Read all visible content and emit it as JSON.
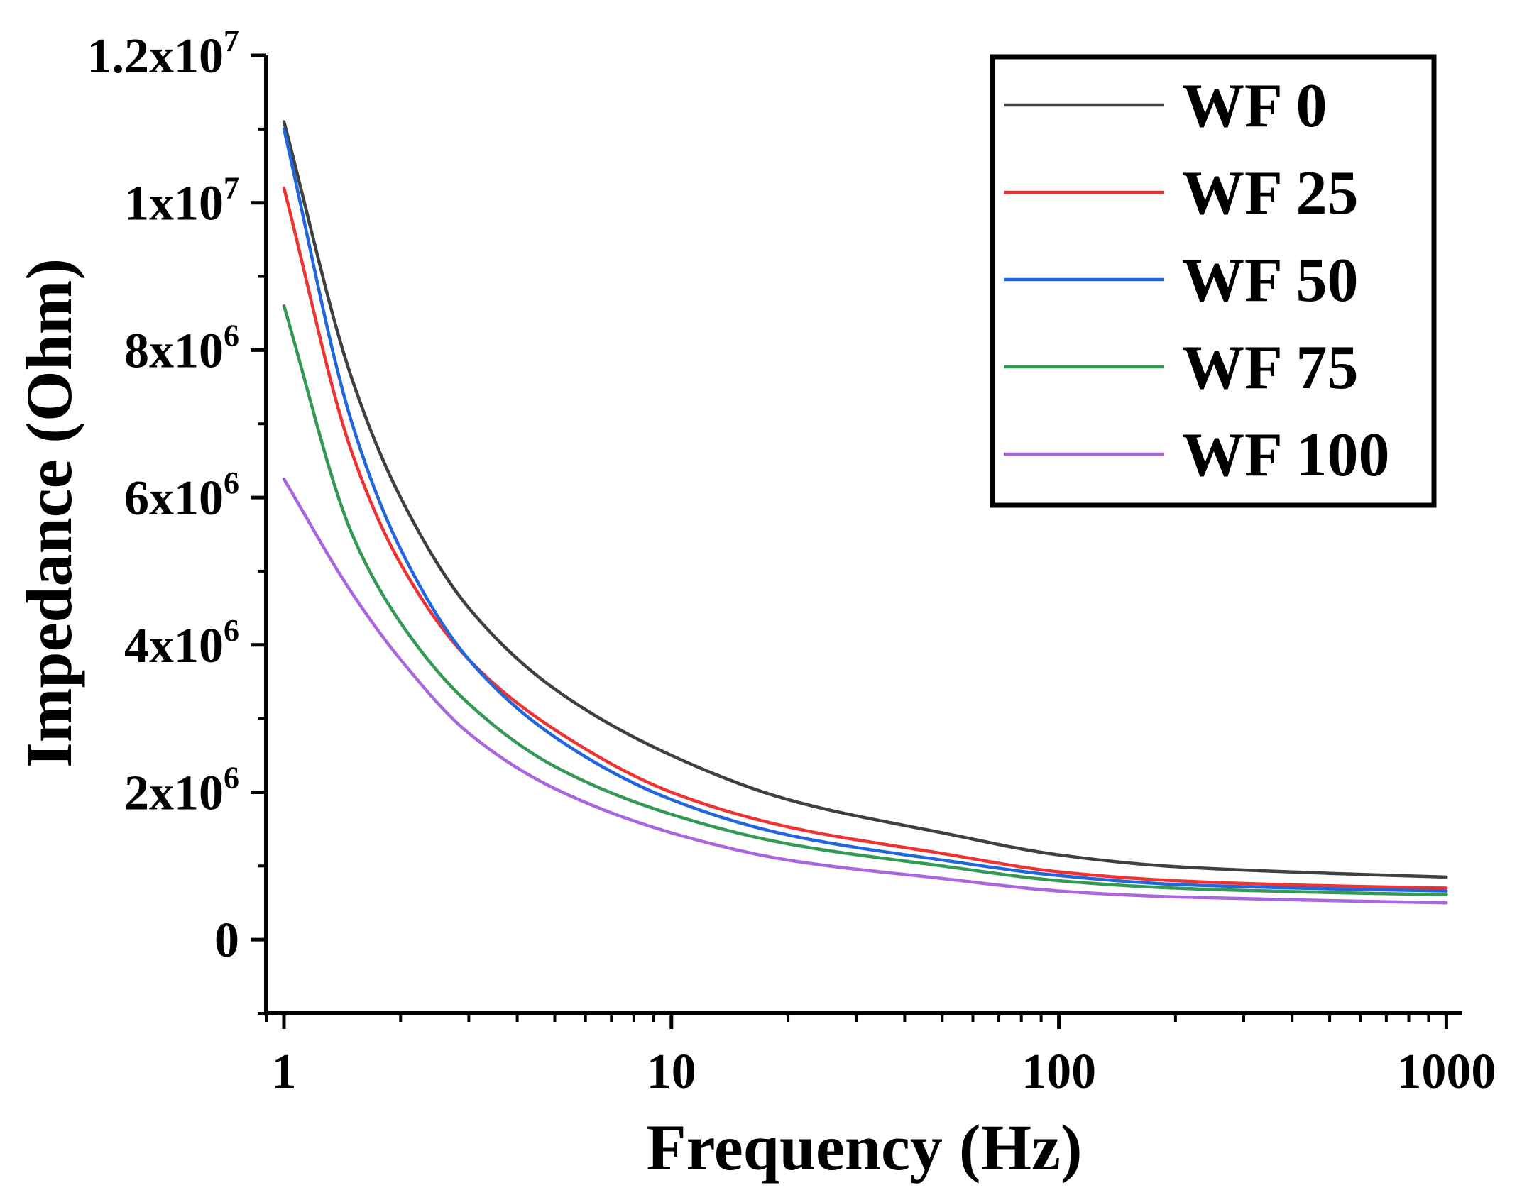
{
  "chart_data": {
    "type": "line",
    "xlabel": "Frequency (Hz)",
    "ylabel": "Impedance (Ohm)",
    "xscale": "log",
    "xlim": [
      0.9,
      1100
    ],
    "ylim": [
      -1000000,
      12000000
    ],
    "xticks": [
      {
        "value": 1,
        "label": "1"
      },
      {
        "value": 10,
        "label": "10"
      },
      {
        "value": 100,
        "label": "100"
      },
      {
        "value": 1000,
        "label": "1000"
      }
    ],
    "yticks": [
      {
        "value": 0,
        "base": "0",
        "exp": ""
      },
      {
        "value": 2000000,
        "base": "2x10",
        "exp": "6"
      },
      {
        "value": 4000000,
        "base": "4x10",
        "exp": "6"
      },
      {
        "value": 6000000,
        "base": "6x10",
        "exp": "6"
      },
      {
        "value": 8000000,
        "base": "8x10",
        "exp": "6"
      },
      {
        "value": 10000000,
        "base": "1x10",
        "exp": "7"
      },
      {
        "value": 12000000,
        "base": "1.2x10",
        "exp": "7"
      }
    ],
    "legend_position": "top-right",
    "x": [
      1,
      1.5,
      2,
      3,
      5,
      10,
      20,
      50,
      100,
      200,
      500,
      1000
    ],
    "series": [
      {
        "name": "WF 0",
        "color": "#404040",
        "values": [
          11100000,
          7600000,
          6000000,
          4500000,
          3400000,
          2500000,
          1900000,
          1450000,
          1150000,
          990000,
          900000,
          850000
        ]
      },
      {
        "name": "WF 25",
        "color": "#ee3333",
        "values": [
          10200000,
          6600000,
          5100000,
          3800000,
          2850000,
          2000000,
          1530000,
          1170000,
          920000,
          800000,
          730000,
          700000
        ]
      },
      {
        "name": "WF 50",
        "color": "#2266dd",
        "values": [
          11000000,
          7000000,
          5300000,
          3800000,
          2750000,
          1900000,
          1420000,
          1080000,
          870000,
          750000,
          690000,
          660000
        ]
      },
      {
        "name": "WF 75",
        "color": "#339955",
        "values": [
          8600000,
          5500000,
          4300000,
          3200000,
          2350000,
          1700000,
          1300000,
          1000000,
          800000,
          700000,
          640000,
          610000
        ]
      },
      {
        "name": "WF 100",
        "color": "#aa66dd",
        "values": [
          6250000,
          4700000,
          3800000,
          2800000,
          2050000,
          1450000,
          1080000,
          830000,
          660000,
          580000,
          530000,
          500000
        ]
      }
    ]
  }
}
